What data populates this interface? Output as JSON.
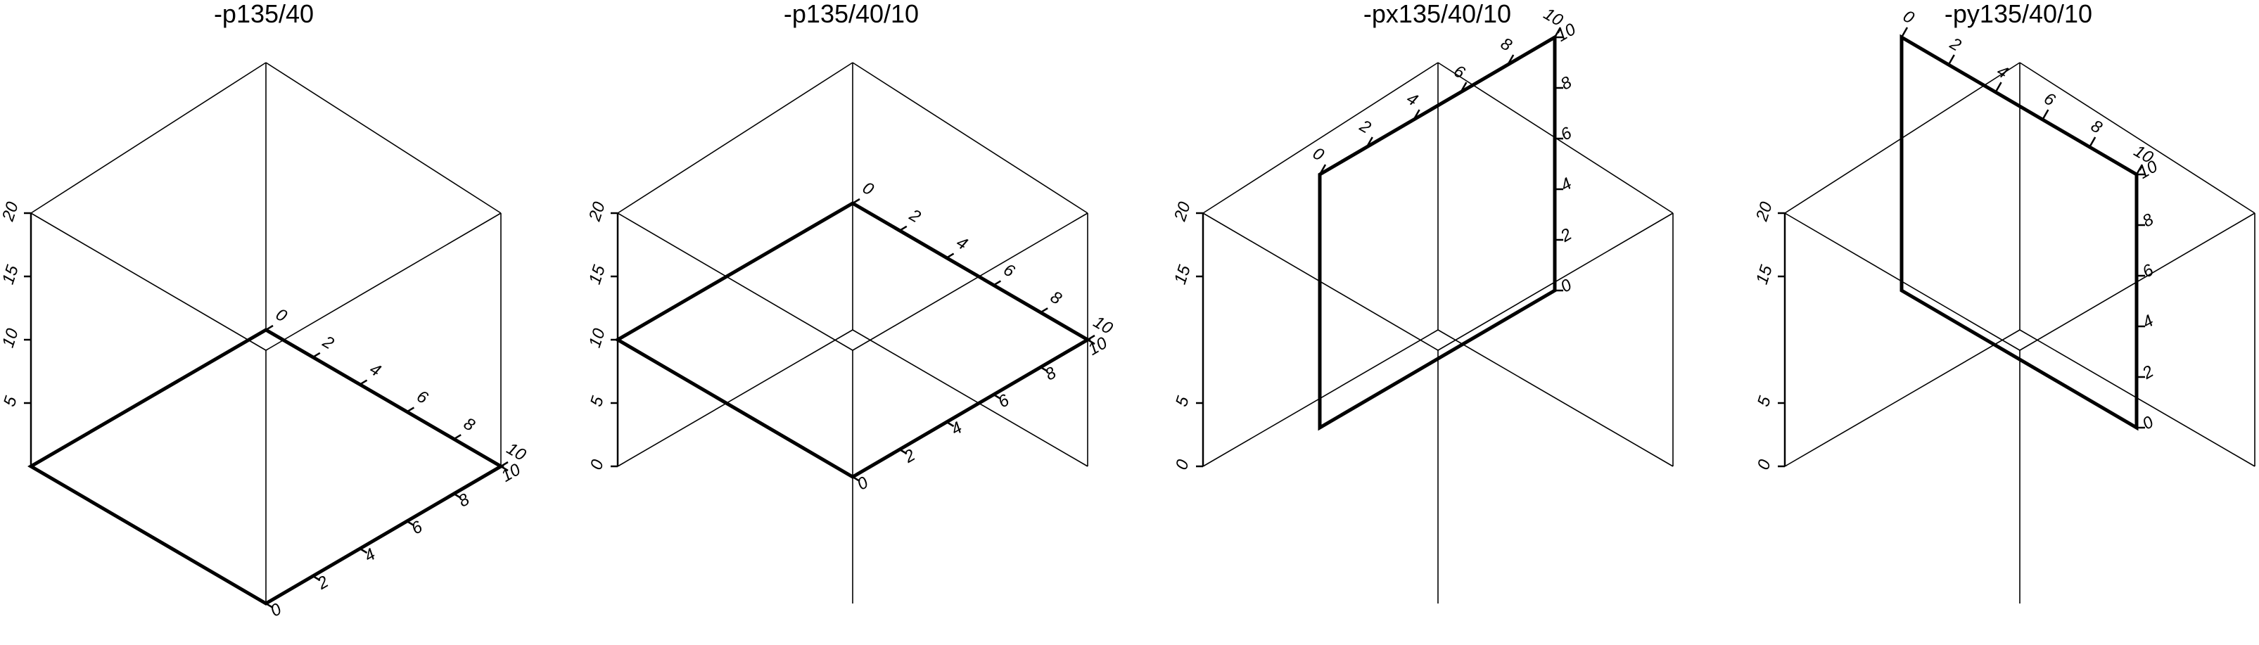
{
  "panels": [
    {
      "title": "-p135/40",
      "plane": "z0",
      "x_ticks": [
        "0",
        "2",
        "4",
        "6",
        "8",
        "10"
      ],
      "y_ticks": [
        "0",
        "2",
        "4",
        "6",
        "8",
        "10"
      ],
      "z_ticks": [
        "5",
        "10",
        "15",
        "20"
      ]
    },
    {
      "title": "-p135/40/10",
      "plane": "z10",
      "x_ticks": [
        "0",
        "2",
        "4",
        "6",
        "8",
        "10"
      ],
      "y_ticks": [
        "0",
        "2",
        "4",
        "6",
        "8",
        "10"
      ],
      "z_ticks": [
        "0",
        "5",
        "10",
        "15",
        "20"
      ]
    },
    {
      "title": "-px135/40/10",
      "plane": "x10",
      "x_ticks": [
        "0",
        "2",
        "4",
        "6",
        "8",
        "10"
      ],
      "y_ticks": [
        "0",
        "2",
        "4",
        "6",
        "8",
        "10"
      ],
      "z_ticks": [
        "0",
        "5",
        "15",
        "20"
      ]
    },
    {
      "title": "-py135/40/10",
      "plane": "y10",
      "x_ticks": [
        "0",
        "2",
        "4",
        "6",
        "8",
        "10"
      ],
      "y_ticks": [
        "0",
        "2",
        "4",
        "6",
        "8",
        "10"
      ],
      "z_ticks": [
        "0",
        "5",
        "15",
        "20"
      ]
    }
  ],
  "colors": {
    "line": "#000000",
    "background": "#ffffff"
  }
}
